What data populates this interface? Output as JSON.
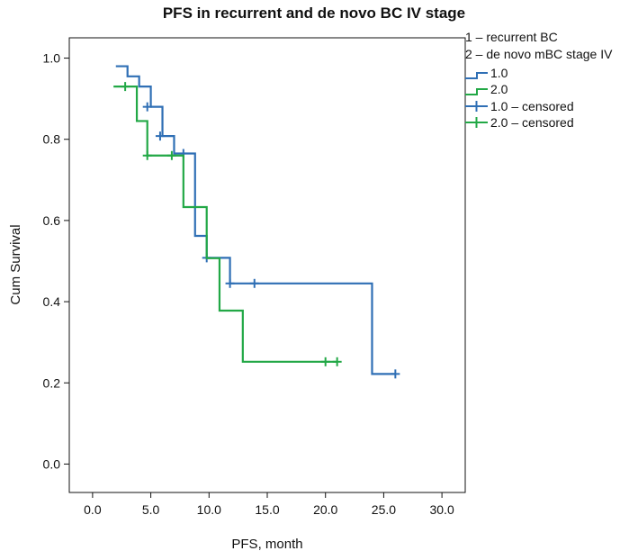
{
  "chart_data": {
    "type": "line",
    "title": "PFS in recurrent and de novo BC IV stage",
    "xlabel": "PFS, month",
    "ylabel": "Cum Survival",
    "xlim": [
      -2,
      32
    ],
    "ylim": [
      -0.07,
      1.05
    ],
    "x_ticks": [
      0,
      5,
      10,
      15,
      20,
      25,
      30
    ],
    "x_tick_labels": [
      "0.0",
      "5.0",
      "10.0",
      "15.0",
      "20.0",
      "25.0",
      "30.0"
    ],
    "y_ticks": [
      0,
      0.2,
      0.4,
      0.6,
      0.8,
      1.0
    ],
    "y_tick_labels": [
      "0.0",
      "0.2",
      "0.4",
      "0.6",
      "0.8",
      "1.0"
    ],
    "grid": false,
    "legend_position": "right",
    "legend_header": [
      "1 – recurrent BC",
      "2 – de novo mBC stage IV"
    ],
    "series": [
      {
        "name": "1.0",
        "color": "#2f6fb5",
        "steps": [
          [
            2.0,
            0.98
          ],
          [
            3.0,
            0.955
          ],
          [
            4.0,
            0.93
          ],
          [
            5.0,
            0.88
          ],
          [
            6.0,
            0.808
          ],
          [
            7.0,
            0.765
          ],
          [
            8.8,
            0.562
          ],
          [
            9.8,
            0.508
          ],
          [
            11.8,
            0.445
          ],
          [
            24.0,
            0.222
          ],
          [
            26.0,
            0.222
          ]
        ],
        "censored_name": "1.0 – censored",
        "censored_x": [
          4.7,
          5.8,
          7.8,
          9.8,
          11.8,
          13.9,
          26.0
        ],
        "censored_y": [
          0.88,
          0.808,
          0.765,
          0.508,
          0.445,
          0.445,
          0.222
        ]
      },
      {
        "name": "2.0",
        "color": "#22a846",
        "steps": [
          [
            1.8,
            0.93
          ],
          [
            3.8,
            0.845
          ],
          [
            4.7,
            0.76
          ],
          [
            7.8,
            0.633
          ],
          [
            9.8,
            0.507
          ],
          [
            10.9,
            0.378
          ],
          [
            12.9,
            0.252
          ],
          [
            21.0,
            0.252
          ]
        ],
        "censored_name": "2.0 – censored",
        "censored_x": [
          2.8,
          4.7,
          6.8,
          20.0,
          21.0
        ],
        "censored_y": [
          0.93,
          0.76,
          0.76,
          0.252,
          0.252
        ]
      }
    ]
  }
}
